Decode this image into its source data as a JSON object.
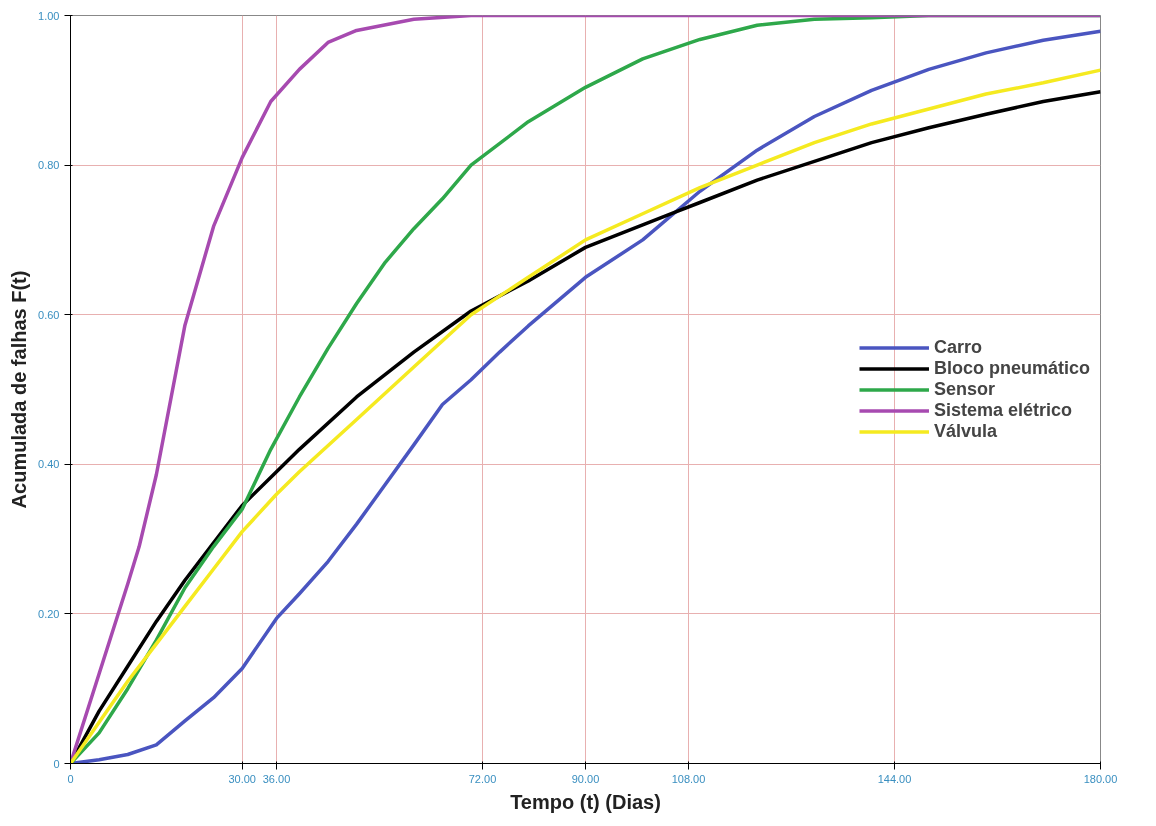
{
  "chart_data": {
    "type": "line",
    "xlabel": "Tempo (t) (Dias)",
    "ylabel": "Acumulada de falhas F(t)",
    "xlim": [
      0,
      180
    ],
    "ylim": [
      0,
      1
    ],
    "xticks": [
      0,
      {
        "value": 30,
        "label": "30.00"
      },
      {
        "value": 36,
        "label": "36.00"
      },
      {
        "value": 72,
        "label": "72.00"
      },
      {
        "value": 90,
        "label": "90.00"
      },
      {
        "value": 108,
        "label": "108.00"
      },
      {
        "value": 144,
        "label": "144.00"
      },
      {
        "value": 180,
        "label": "180.00"
      }
    ],
    "yticks": [
      0,
      {
        "value": 0.2,
        "label": "0.20"
      },
      {
        "value": 0.4,
        "label": "0.40"
      },
      {
        "value": 0.6,
        "label": "0.60"
      },
      {
        "value": 0.8,
        "label": "0.80"
      },
      {
        "value": 1,
        "label": "1.00"
      }
    ],
    "grid": true,
    "legend": "right",
    "marker": "none",
    "line_style": "solid",
    "series": [
      {
        "name": "Carro",
        "color": "#4a55c0",
        "x": [
          0,
          5,
          10,
          15,
          20,
          25,
          30,
          36,
          40,
          45,
          50,
          55,
          60,
          65,
          70,
          75,
          80,
          90,
          100,
          110,
          120,
          130,
          140,
          150,
          160,
          170,
          180
        ],
        "values": [
          0,
          0.005,
          0.012,
          0.025,
          0.057,
          0.088,
          0.127,
          0.194,
          0.227,
          0.27,
          0.32,
          0.373,
          0.426,
          0.48,
          0.513,
          0.55,
          0.585,
          0.65,
          0.7,
          0.765,
          0.82,
          0.865,
          0.9,
          0.928,
          0.95,
          0.967,
          0.979
        ]
      },
      {
        "name": "Bloco pneumático",
        "color": "#000000",
        "x": [
          0,
          5,
          10,
          15,
          20,
          25,
          30,
          36,
          40,
          50,
          60,
          70,
          80,
          90,
          100,
          105,
          110,
          120,
          130,
          140,
          150,
          160,
          170,
          180
        ],
        "values": [
          0,
          0.07,
          0.13,
          0.19,
          0.245,
          0.295,
          0.345,
          0.39,
          0.42,
          0.49,
          0.55,
          0.605,
          0.645,
          0.69,
          0.72,
          0.735,
          0.75,
          0.78,
          0.805,
          0.83,
          0.85,
          0.868,
          0.885,
          0.898
        ]
      },
      {
        "name": "Sensor",
        "color": "#2ea84a",
        "x": [
          0,
          5,
          10,
          15,
          20,
          25,
          30,
          35,
          40,
          45,
          50,
          55,
          60,
          65,
          70,
          80,
          90,
          100,
          110,
          120,
          130,
          140,
          150,
          160,
          180
        ],
        "values": [
          0,
          0.041,
          0.1,
          0.165,
          0.235,
          0.29,
          0.34,
          0.42,
          0.49,
          0.555,
          0.615,
          0.67,
          0.715,
          0.755,
          0.8,
          0.858,
          0.904,
          0.942,
          0.968,
          0.987,
          0.995,
          0.997,
          1,
          1,
          1
        ]
      },
      {
        "name": "Sistema elétrico",
        "color": "#a74ab0",
        "x": [
          0,
          5,
          10,
          12,
          15,
          20,
          25,
          30,
          35,
          40,
          45,
          50,
          60,
          70,
          80,
          180
        ],
        "values": [
          0,
          0.12,
          0.24,
          0.29,
          0.386,
          0.586,
          0.718,
          0.81,
          0.885,
          0.928,
          0.964,
          0.98,
          0.995,
          1,
          1,
          1
        ]
      },
      {
        "name": "Válvula",
        "color": "#f5ea20",
        "x": [
          0,
          5,
          10,
          15,
          20,
          25,
          30,
          36,
          40,
          50,
          60,
          70,
          80,
          90,
          100,
          110,
          120,
          130,
          140,
          150,
          160,
          170,
          180
        ],
        "values": [
          0,
          0.055,
          0.11,
          0.16,
          0.21,
          0.26,
          0.31,
          0.36,
          0.39,
          0.46,
          0.53,
          0.6,
          0.65,
          0.7,
          0.735,
          0.77,
          0.8,
          0.83,
          0.855,
          0.875,
          0.895,
          0.91,
          0.927
        ]
      }
    ]
  }
}
